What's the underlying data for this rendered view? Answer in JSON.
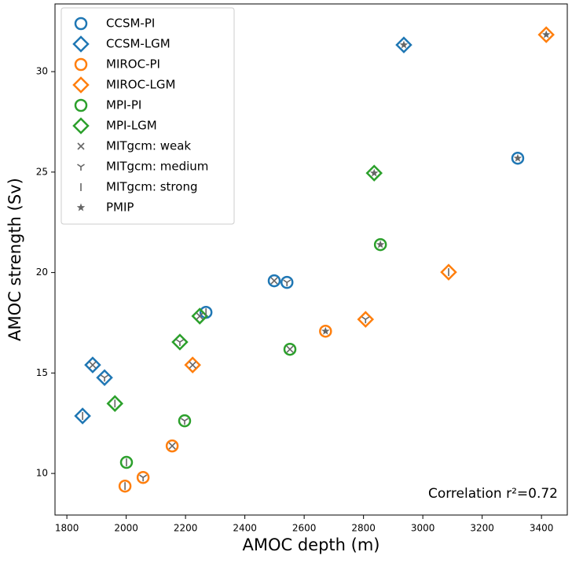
{
  "chart_data": {
    "type": "scatter",
    "x_label": "AMOC depth (m)",
    "y_label": "AMOC strength (Sv)",
    "annotation": "Correlation r²=0.72",
    "xlim": [
      1760,
      3487
    ],
    "ylim": [
      7.93,
      33.37
    ],
    "xticks": [
      1800,
      2000,
      2200,
      2400,
      2600,
      2800,
      3000,
      3200,
      3400
    ],
    "yticks": [
      10,
      15,
      20,
      25,
      30
    ],
    "legend": "upper left",
    "series": [
      {
        "name": "CCSM-PI",
        "color": "#1f77b4",
        "marker": "circle",
        "x": [
          2269,
          2499,
          2542,
          3320
        ],
        "values": [
          18.02,
          19.59,
          19.51,
          25.69
        ]
      },
      {
        "name": "CCSM-LGM",
        "color": "#1f77b4",
        "marker": "diamond",
        "x": [
          1853,
          1887,
          1927,
          2936
        ],
        "values": [
          12.86,
          15.4,
          14.77,
          31.33
        ]
      },
      {
        "name": "MIROC-PI",
        "color": "#ff7f0e",
        "marker": "circle",
        "x": [
          1996,
          2057,
          2155,
          2672
        ],
        "values": [
          9.37,
          9.8,
          11.37,
          17.08
        ]
      },
      {
        "name": "MIROC-LGM",
        "color": "#ff7f0e",
        "marker": "diamond",
        "x": [
          2224,
          2807,
          3087,
          3416
        ],
        "values": [
          15.4,
          17.67,
          20.02,
          31.84
        ]
      },
      {
        "name": "MPI-PI",
        "color": "#2ca02c",
        "marker": "circle",
        "x": [
          2001,
          2197,
          2552,
          2857
        ],
        "values": [
          10.55,
          12.62,
          16.18,
          21.39
        ]
      },
      {
        "name": "MPI-LGM",
        "color": "#2ca02c",
        "marker": "diamond",
        "x": [
          1962,
          2181,
          2248,
          2836
        ],
        "values": [
          13.48,
          16.54,
          17.83,
          24.95
        ]
      },
      {
        "name": "MITgcm: weak",
        "color": "#666666",
        "marker": "x",
        "x": [
          2499,
          1887,
          2155,
          2224,
          2552,
          2248
        ],
        "values": [
          19.59,
          15.4,
          11.37,
          15.4,
          16.18,
          17.83
        ]
      },
      {
        "name": "MITgcm: medium",
        "color": "#666666",
        "marker": "tri",
        "x": [
          2542,
          1927,
          2057,
          2807,
          2197,
          2181
        ],
        "values": [
          19.51,
          14.77,
          9.8,
          17.67,
          12.62,
          16.54
        ]
      },
      {
        "name": "MITgcm: strong",
        "color": "#666666",
        "marker": "vline",
        "x": [
          2269,
          1853,
          1996,
          3087,
          2001,
          1962
        ],
        "values": [
          18.02,
          12.86,
          9.37,
          20.02,
          10.55,
          13.48
        ]
      },
      {
        "name": "PMIP",
        "color": "#666666",
        "marker": "star",
        "x": [
          3320,
          2936,
          2672,
          3416,
          2857,
          2836
        ],
        "values": [
          25.69,
          31.33,
          17.08,
          31.84,
          21.39,
          24.95
        ]
      }
    ]
  }
}
